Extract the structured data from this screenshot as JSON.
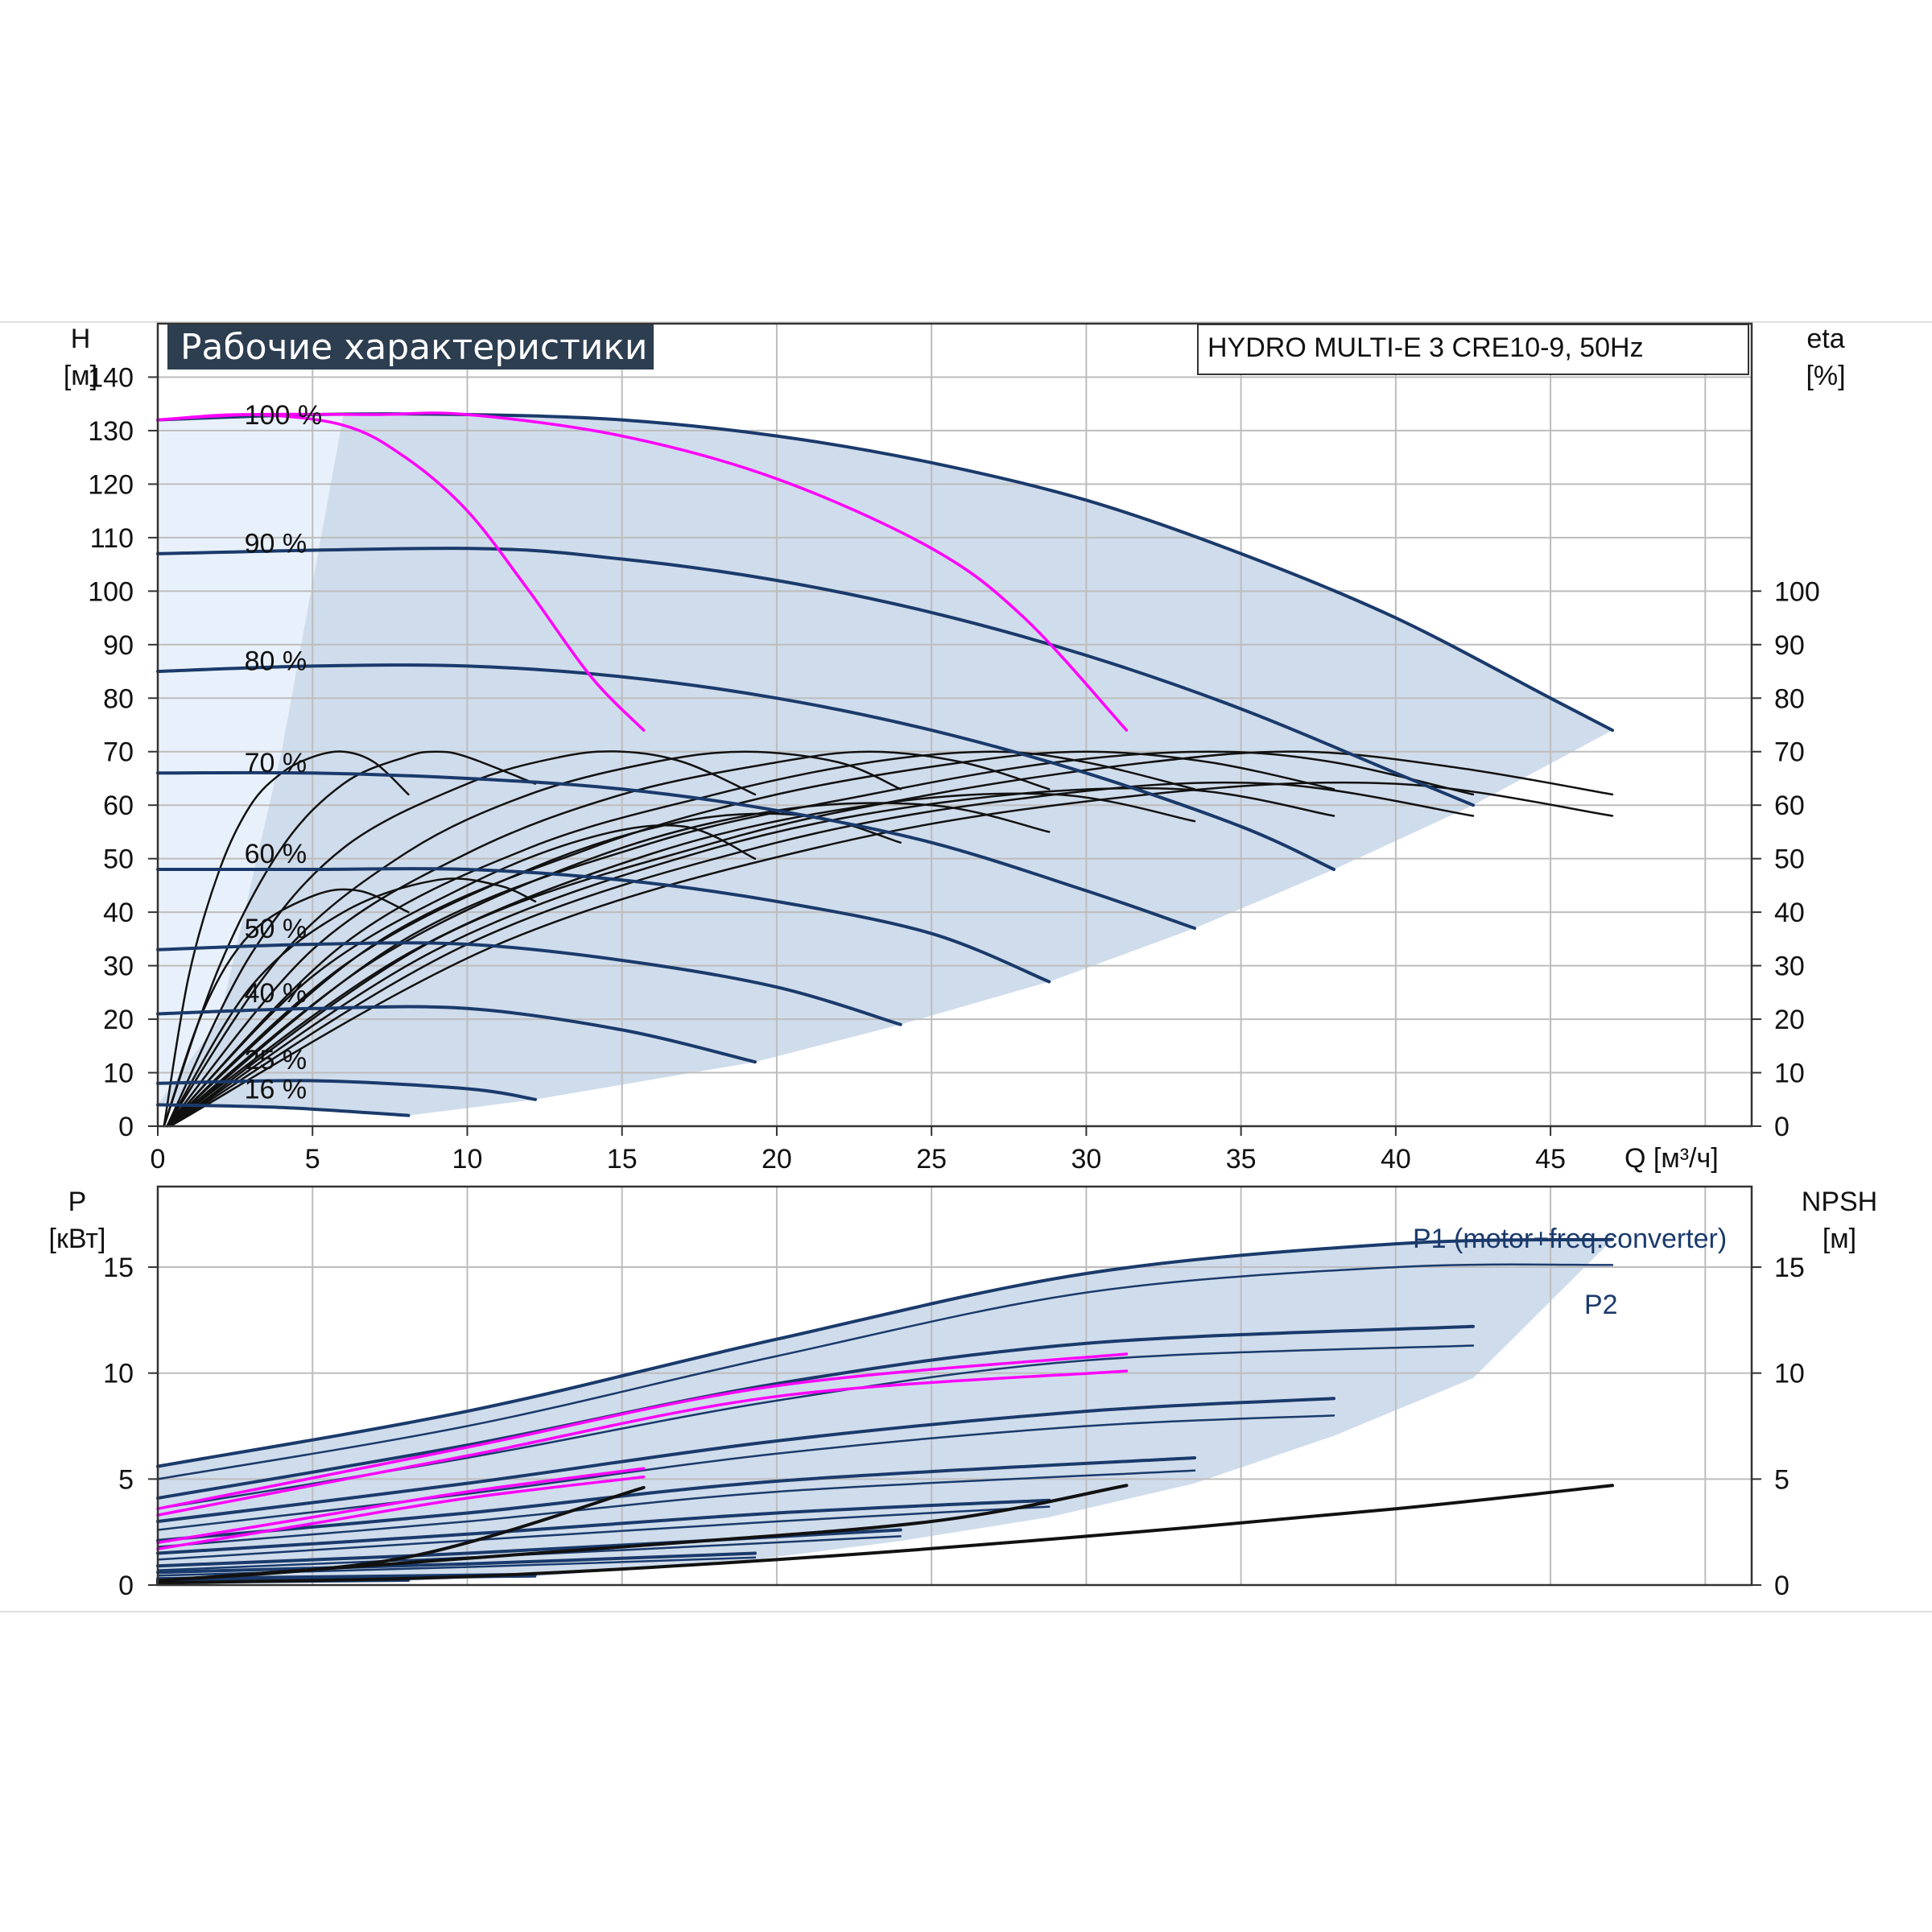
{
  "header": {
    "title": "Рабочие характеристики",
    "model": "HYDRO MULTI-E 3 CRE10-9, 50Hz"
  },
  "colors": {
    "area_fill": "#cfdceb",
    "area_fill_light": "#e8f1fb",
    "curve": "#1a3a6b",
    "highlight": "#ff00ff",
    "efficiency": "#111111",
    "grid": "#bdbdbd",
    "title_bg": "#2c3e50"
  },
  "chart_data": [
    {
      "id": "head",
      "type": "line",
      "ylabel_name": "H",
      "ylabel_unit": "[м]",
      "y2label_name": "eta",
      "y2label_unit": "[%]",
      "xlabel": "Q [м³/ч]",
      "xlim": [
        0,
        51.5
      ],
      "ylim": [
        0,
        150
      ],
      "xticks": [
        0,
        5,
        10,
        15,
        20,
        25,
        30,
        35,
        40,
        45
      ],
      "yticks": [
        0,
        10,
        20,
        30,
        40,
        50,
        60,
        70,
        80,
        90,
        100,
        110,
        120,
        130,
        140
      ],
      "y2ticks": [
        0,
        10,
        20,
        30,
        40,
        50,
        60,
        70,
        80,
        90,
        100
      ],
      "grid": true,
      "speed_curves": [
        {
          "label": "100 %",
          "x": [
            0,
            5,
            10,
            15,
            20,
            25,
            30,
            35,
            40,
            45,
            47
          ],
          "y": [
            132,
            133,
            133,
            132,
            129,
            124,
            117,
            107,
            95,
            80,
            74
          ]
        },
        {
          "label": "90 %",
          "x": [
            0,
            10,
            15,
            20,
            25,
            30,
            35,
            40,
            42.5
          ],
          "y": [
            107,
            108,
            106,
            102,
            96,
            88,
            78,
            66,
            60
          ]
        },
        {
          "label": "80 %",
          "x": [
            0,
            5,
            10,
            15,
            20,
            25,
            30,
            35,
            38
          ],
          "y": [
            85,
            86,
            86,
            84,
            80,
            74,
            66,
            56,
            48
          ]
        },
        {
          "label": "70 %",
          "x": [
            0,
            5,
            10,
            15,
            20,
            25,
            30,
            33.5
          ],
          "y": [
            66,
            66,
            65,
            63,
            59,
            53,
            44,
            37
          ]
        },
        {
          "label": "60 %",
          "x": [
            0,
            5,
            10,
            15,
            20,
            25,
            28.8
          ],
          "y": [
            48,
            48,
            48,
            46,
            42,
            36,
            27
          ]
        },
        {
          "label": "50 %",
          "x": [
            0,
            5,
            10,
            15,
            20,
            24
          ],
          "y": [
            33,
            34,
            34,
            31,
            26,
            19
          ]
        },
        {
          "label": "40 %",
          "x": [
            0,
            5,
            10,
            15,
            19.3
          ],
          "y": [
            21,
            22,
            22,
            18,
            12
          ]
        },
        {
          "label": "25 %",
          "x": [
            0,
            5,
            10,
            12.2
          ],
          "y": [
            8,
            8.5,
            7,
            5
          ]
        },
        {
          "label": "16 %",
          "x": [
            0,
            4,
            8.1
          ],
          "y": [
            4,
            3.5,
            2
          ]
        }
      ],
      "highlight_curves": [
        {
          "x": [
            0,
            3,
            6,
            8,
            10,
            12,
            14,
            15.7
          ],
          "y": [
            132,
            133,
            131,
            125,
            115,
            100,
            84,
            74
          ]
        },
        {
          "x": [
            0,
            3,
            7,
            10,
            15,
            20,
            25,
            28,
            31.3
          ],
          "y": [
            132,
            133,
            133,
            133,
            129,
            121,
            108,
            95,
            74
          ]
        }
      ],
      "efficiency_curves": [
        {
          "x": [
            0.2,
            1,
            2,
            3,
            4,
            5,
            6,
            7,
            8.1
          ],
          "y": [
            0,
            28,
            48,
            60,
            66,
            69,
            70,
            68,
            62
          ]
        },
        {
          "x": [
            0.2,
            2,
            4,
            6,
            8,
            9,
            10,
            12.2
          ],
          "y": [
            0,
            30,
            52,
            64,
            69,
            70,
            69,
            64
          ]
        },
        {
          "x": [
            0.3,
            3,
            6,
            10,
            13,
            15,
            17,
            19.3
          ],
          "y": [
            0,
            32,
            52,
            64,
            69,
            70,
            68,
            62
          ]
        },
        {
          "x": [
            0.3,
            4,
            8,
            12,
            16,
            19,
            22,
            24
          ],
          "y": [
            0,
            32,
            51,
            62,
            68,
            70,
            68,
            63
          ]
        },
        {
          "x": [
            0.3,
            5,
            10,
            15,
            20,
            23,
            26,
            28.8
          ],
          "y": [
            0,
            33,
            51,
            62,
            68,
            70,
            68,
            63
          ]
        },
        {
          "x": [
            0.3,
            6,
            12,
            18,
            23,
            27,
            30,
            33.5
          ],
          "y": [
            0,
            34,
            52,
            62,
            68,
            70,
            68,
            63
          ]
        },
        {
          "x": [
            0.3,
            7,
            14,
            20,
            26,
            30,
            34,
            38
          ],
          "y": [
            0,
            34,
            52,
            62,
            68,
            70,
            68,
            63
          ]
        },
        {
          "x": [
            0.4,
            8,
            16,
            23,
            29,
            34,
            38,
            42.5
          ],
          "y": [
            0,
            35,
            53,
            62,
            68,
            70,
            68,
            62
          ]
        },
        {
          "x": [
            0.4,
            9,
            18,
            25,
            32,
            37,
            42,
            47
          ],
          "y": [
            0,
            35,
            53,
            62,
            68,
            70,
            67,
            62
          ]
        },
        {
          "x": [
            0.2,
            1.5,
            3,
            5,
            6.5,
            8.1
          ],
          "y": [
            0,
            22,
            36,
            43,
            44,
            40
          ]
        },
        {
          "x": [
            0.3,
            3,
            6,
            9,
            11,
            12.2
          ],
          "y": [
            0,
            26,
            40,
            46,
            45,
            42
          ]
        },
        {
          "x": [
            0.3,
            5,
            10,
            14,
            17,
            19.3
          ],
          "y": [
            0,
            28,
            45,
            54,
            56,
            50
          ]
        },
        {
          "x": [
            0.3,
            6,
            12,
            17,
            21,
            24
          ],
          "y": [
            0,
            30,
            48,
            57,
            58,
            53
          ]
        },
        {
          "x": [
            0.3,
            7,
            14,
            20,
            25,
            28.8
          ],
          "y": [
            0,
            31,
            50,
            59,
            60,
            55
          ]
        },
        {
          "x": [
            0.3,
            8,
            16,
            23,
            29,
            33.5
          ],
          "y": [
            0,
            32,
            51,
            60,
            62,
            57
          ]
        },
        {
          "x": [
            0.4,
            9,
            18,
            26,
            33,
            38
          ],
          "y": [
            0,
            33,
            52,
            61,
            63,
            58
          ]
        },
        {
          "x": [
            0.4,
            10,
            20,
            29,
            36,
            42.5
          ],
          "y": [
            0,
            34,
            53,
            62,
            64,
            58
          ]
        },
        {
          "x": [
            0.4,
            11,
            22,
            32,
            40,
            47
          ],
          "y": [
            0,
            34,
            53,
            62,
            64,
            58
          ]
        }
      ]
    },
    {
      "id": "power",
      "type": "line",
      "ylabel_name": "P",
      "ylabel_unit": "[кВт]",
      "y2label_name": "NPSH",
      "y2label_unit": "[м]",
      "xlim": [
        0,
        51.5
      ],
      "ylim": [
        0,
        18.8
      ],
      "yticks": [
        0,
        5,
        10,
        15
      ],
      "y2ticks": [
        0,
        5,
        10,
        15
      ],
      "grid": true,
      "series_labels": {
        "p1": "P1 (motor+freq.converter)",
        "p2": "P2"
      },
      "p1_curves": [
        {
          "x": [
            0,
            10,
            20,
            30,
            40,
            47
          ],
          "y": [
            5.6,
            8.2,
            11.6,
            14.7,
            16.1,
            16.3
          ]
        },
        {
          "x": [
            0,
            10,
            20,
            30,
            42.5
          ],
          "y": [
            4.1,
            6.6,
            9.5,
            11.4,
            12.2
          ]
        },
        {
          "x": [
            0,
            10,
            20,
            30,
            38
          ],
          "y": [
            3.0,
            4.8,
            6.8,
            8.2,
            8.8
          ]
        },
        {
          "x": [
            0,
            10,
            20,
            33.5
          ],
          "y": [
            2.1,
            3.4,
            4.9,
            6.0
          ]
        },
        {
          "x": [
            0,
            10,
            20,
            28.8
          ],
          "y": [
            1.5,
            2.4,
            3.4,
            4.0
          ]
        },
        {
          "x": [
            0,
            10,
            24
          ],
          "y": [
            0.9,
            1.5,
            2.6
          ]
        },
        {
          "x": [
            0,
            10,
            19.3
          ],
          "y": [
            0.6,
            1.0,
            1.5
          ]
        },
        {
          "x": [
            0,
            6,
            12.2
          ],
          "y": [
            0.3,
            0.4,
            0.5
          ]
        },
        {
          "x": [
            0,
            4,
            8.1
          ],
          "y": [
            0.15,
            0.2,
            0.25
          ]
        }
      ],
      "p2_curves": [
        {
          "x": [
            0,
            10,
            20,
            30,
            40,
            47
          ],
          "y": [
            5.0,
            7.5,
            10.8,
            13.8,
            15.0,
            15.1
          ]
        },
        {
          "x": [
            0,
            10,
            20,
            30,
            42.5
          ],
          "y": [
            3.6,
            6.0,
            8.7,
            10.6,
            11.3
          ]
        },
        {
          "x": [
            0,
            10,
            20,
            30,
            38
          ],
          "y": [
            2.6,
            4.3,
            6.2,
            7.5,
            8.0
          ]
        },
        {
          "x": [
            0,
            10,
            20,
            33.5
          ],
          "y": [
            1.8,
            3.0,
            4.4,
            5.4
          ]
        },
        {
          "x": [
            0,
            10,
            20,
            28.8
          ],
          "y": [
            1.2,
            2.1,
            3.0,
            3.7
          ]
        },
        {
          "x": [
            0,
            10,
            24
          ],
          "y": [
            0.7,
            1.3,
            2.3
          ]
        },
        {
          "x": [
            0,
            10,
            19.3
          ],
          "y": [
            0.45,
            0.85,
            1.3
          ]
        },
        {
          "x": [
            0,
            6,
            12.2
          ],
          "y": [
            0.2,
            0.3,
            0.4
          ]
        },
        {
          "x": [
            0,
            4,
            8.1
          ],
          "y": [
            0.1,
            0.15,
            0.2
          ]
        }
      ],
      "highlight_curves": [
        {
          "x": [
            0,
            5,
            10,
            15.7
          ],
          "y": [
            2.0,
            3.2,
            4.4,
            5.5
          ]
        },
        {
          "x": [
            0,
            5,
            10,
            15.7
          ],
          "y": [
            1.7,
            2.9,
            4.1,
            5.1
          ]
        },
        {
          "x": [
            0,
            10,
            20,
            31.3
          ],
          "y": [
            3.6,
            6.5,
            9.4,
            10.9
          ]
        },
        {
          "x": [
            0,
            10,
            20,
            31.3
          ],
          "y": [
            3.3,
            6.1,
            8.9,
            10.1
          ]
        }
      ],
      "npsh_curves": [
        {
          "x": [
            0,
            10,
            20,
            30,
            40,
            47
          ],
          "y": [
            0.1,
            0.4,
            1.2,
            2.3,
            3.6,
            4.7
          ]
        },
        {
          "x": [
            0,
            8,
            15.7
          ],
          "y": [
            0.2,
            1.3,
            4.6
          ]
        },
        {
          "x": [
            0,
            15,
            25,
            31.3
          ],
          "y": [
            0.2,
            1.8,
            3.0,
            4.7
          ]
        }
      ]
    }
  ]
}
